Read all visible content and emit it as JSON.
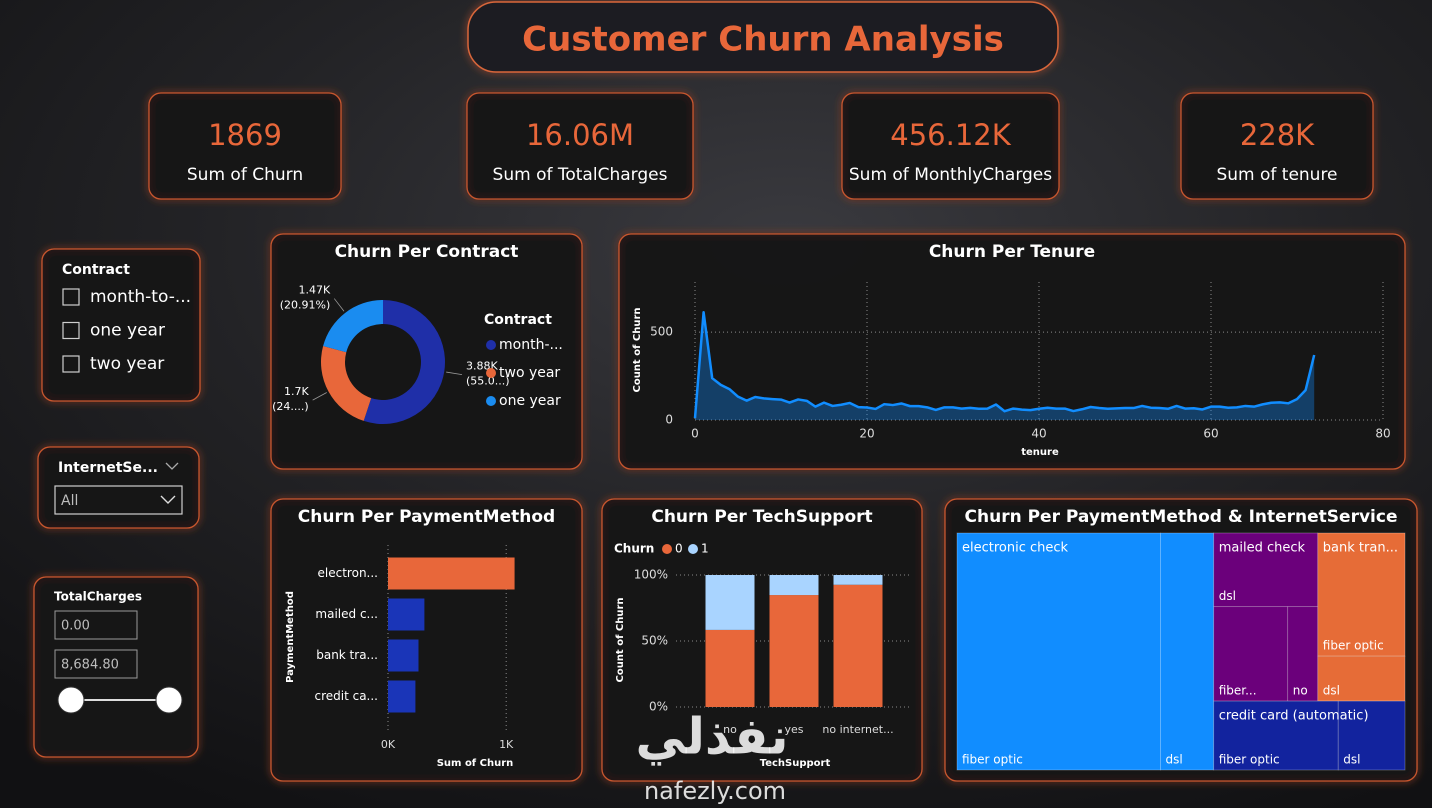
{
  "title": "Customer Churn Analysis",
  "kpis": [
    {
      "value": "1869",
      "label": "Sum of Churn"
    },
    {
      "value": "16.06M",
      "label": "Sum of TotalCharges"
    },
    {
      "value": "456.12K",
      "label": "Sum of MonthlyCharges"
    },
    {
      "value": "228K",
      "label": "Sum of tenure"
    }
  ],
  "slicers": {
    "contract": {
      "title": "Contract",
      "options": [
        "month-to-...",
        "one year",
        "two year"
      ]
    },
    "internet": {
      "title": "InternetSe...",
      "selected": "All"
    },
    "charges": {
      "title": "TotalCharges",
      "min": "0.00",
      "max": "8,684.80"
    }
  },
  "watermark": {
    "arabic": "نفذلي",
    "latin": "nafezly.com"
  },
  "chart_data": [
    {
      "type": "donut",
      "title": "Churn Per Contract",
      "legend_title": "Contract",
      "categories": [
        "month-...",
        "two year",
        "one year"
      ],
      "values": [
        3880,
        1700,
        1470
      ],
      "value_labels": [
        "3.88K",
        "1.7K",
        "1.47K"
      ],
      "share_labels": [
        "(55.0...)",
        "(24....)",
        "(20.91%)"
      ],
      "colors": [
        "#1f2fa8",
        "#e8673a",
        "#1a8cf0"
      ]
    },
    {
      "type": "line",
      "title": "Churn Per Tenure",
      "x_label": "tenure",
      "y_label": "Count of Churn",
      "x": [
        0,
        1,
        2,
        3,
        4,
        5,
        6,
        7,
        8,
        9,
        10,
        11,
        12,
        13,
        14,
        15,
        16,
        17,
        18,
        19,
        20,
        21,
        22,
        23,
        24,
        25,
        26,
        27,
        28,
        29,
        30,
        31,
        32,
        33,
        34,
        35,
        36,
        37,
        38,
        39,
        40,
        41,
        42,
        43,
        44,
        45,
        46,
        47,
        48,
        49,
        50,
        51,
        52,
        53,
        54,
        55,
        56,
        57,
        58,
        59,
        60,
        61,
        62,
        63,
        64,
        65,
        66,
        67,
        68,
        69,
        70,
        71,
        72
      ],
      "values": [
        11,
        613,
        238,
        200,
        176,
        133,
        110,
        131,
        123,
        119,
        116,
        99,
        117,
        109,
        76,
        99,
        80,
        87,
        97,
        73,
        71,
        63,
        90,
        85,
        94,
        79,
        79,
        72,
        57,
        72,
        72,
        65,
        69,
        64,
        65,
        88,
        50,
        65,
        59,
        56,
        64,
        70,
        65,
        65,
        51,
        61,
        74,
        68,
        64,
        66,
        68,
        68,
        80,
        70,
        68,
        64,
        80,
        65,
        67,
        60,
        76,
        76,
        70,
        72,
        80,
        76,
        89,
        98,
        100,
        95,
        119,
        170,
        370
      ],
      "color": "#118dff",
      "xlim": [
        0,
        80
      ],
      "xticks": [
        0,
        20,
        40,
        60,
        80
      ],
      "ylim": [
        0,
        700
      ],
      "yticks": [
        0,
        500
      ],
      "grid": true
    },
    {
      "type": "hbar",
      "title": "Churn Per PaymentMethod",
      "x_label": "Sum of Churn",
      "y_label": "PaymentMethod",
      "categories": [
        "electron...",
        "mailed c...",
        "bank tra...",
        "credit ca..."
      ],
      "values": [
        1071,
        308,
        258,
        232
      ],
      "colors": [
        "#e8673a",
        "#1a35b8",
        "#1a35b8",
        "#1a35b8"
      ],
      "xlim": [
        0,
        1100
      ],
      "xticks": [
        {
          "value": 0,
          "label": "0K"
        },
        {
          "value": 1000,
          "label": "1K"
        }
      ],
      "grid": true
    },
    {
      "type": "stacked100",
      "title": "Churn Per TechSupport",
      "x_label": "TechSupport",
      "y_label": "Count of Churn",
      "legend_title": "Churn",
      "categories": [
        "no",
        "yes",
        "no internet..."
      ],
      "series": [
        {
          "name": "0",
          "color": "#e8673a",
          "values": [
            58.4,
            84.8,
            92.6
          ]
        },
        {
          "name": "1",
          "color": "#a9d4ff",
          "values": [
            41.6,
            15.2,
            7.4
          ]
        }
      ],
      "ylim": [
        0,
        100
      ],
      "yticks": [
        {
          "value": 0,
          "label": "0%"
        },
        {
          "value": 50,
          "label": "50%"
        },
        {
          "value": 100,
          "label": "100%"
        }
      ],
      "grid": true
    },
    {
      "type": "treemap",
      "title": "Churn Per PaymentMethod & InternetService",
      "groups": [
        {
          "name": "electronic check",
          "color": "#118dff",
          "children": [
            {
              "name": "fiber optic",
              "value": 849
            },
            {
              "name": "dsl",
              "value": 222
            }
          ]
        },
        {
          "name": "mailed check",
          "color": "#6b007b",
          "children": [
            {
              "name": "dsl",
              "value": 135
            },
            {
              "name": "fiber...",
              "value": 123
            },
            {
              "name": "no",
              "value": 50
            }
          ]
        },
        {
          "name": "bank tran...",
          "color": "#e66c37",
          "children": [
            {
              "name": "fiber optic",
              "value": 189
            },
            {
              "name": "dsl",
              "value": 69
            }
          ]
        },
        {
          "name": "credit card (automatic)",
          "color": "#12239e",
          "children": [
            {
              "name": "fiber optic",
              "value": 151
            },
            {
              "name": "dsl",
              "value": 81
            }
          ]
        }
      ]
    }
  ]
}
